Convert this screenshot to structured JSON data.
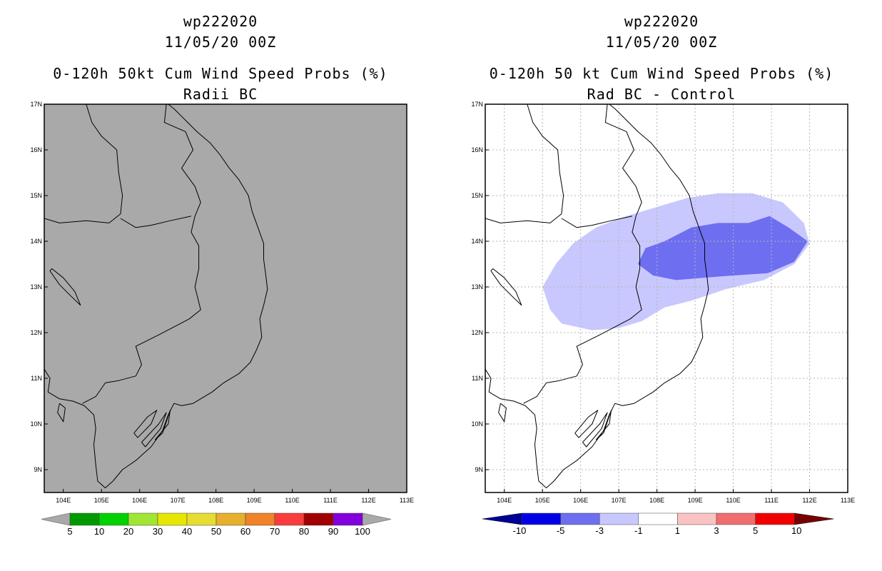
{
  "chart_data": [
    {
      "type": "heatmap",
      "panel": "left",
      "title_lines": [
        "wp222020",
        "11/05/20 00Z",
        "0-120h 50kt Cum Wind Speed Probs (%)",
        "Radii BC"
      ],
      "xlim": [
        103.5,
        113
      ],
      "ylim": [
        8.5,
        17
      ],
      "x_ticks": [
        "104E",
        "105E",
        "106E",
        "107E",
        "108E",
        "109E",
        "110E",
        "111E",
        "112E",
        "113E"
      ],
      "y_ticks": [
        "9N",
        "10N",
        "11N",
        "12N",
        "13N",
        "14N",
        "15N",
        "16N",
        "17N"
      ],
      "field": "all below 5% (undefined)",
      "fill_color": "#a9a9a9",
      "gridlines": false,
      "colorbar": {
        "labels": [
          "5",
          "10",
          "20",
          "30",
          "40",
          "50",
          "60",
          "70",
          "80",
          "90",
          "100"
        ],
        "colors": [
          "#009a00",
          "#00d200",
          "#a0e632",
          "#e6e600",
          "#e6dc32",
          "#e6af2d",
          "#f08228",
          "#fa3c3c",
          "#a00000",
          "#8200dc"
        ],
        "end_color": "#a9a9a9"
      }
    },
    {
      "type": "heatmap",
      "panel": "right",
      "title_lines": [
        "wp222020",
        "11/05/20 00Z",
        "0-120h 50 kt Cum Wind Speed Probs (%)",
        "Rad BC - Control"
      ],
      "xlim": [
        103.5,
        113
      ],
      "ylim": [
        8.5,
        17
      ],
      "x_ticks": [
        "104E",
        "105E",
        "106E",
        "107E",
        "108E",
        "109E",
        "110E",
        "111E",
        "112E",
        "113E"
      ],
      "y_ticks": [
        "9N",
        "10N",
        "11N",
        "12N",
        "13N",
        "14N",
        "15N",
        "16N",
        "17N"
      ],
      "gridlines": true,
      "contours": [
        {
          "range": "-3 to -1",
          "color": "#c8c8ff"
        },
        {
          "range": "-5 to -3",
          "color": "#6e6ef0"
        }
      ],
      "colorbar": {
        "labels": [
          "-10",
          "-5",
          "-3",
          "-1",
          "1",
          "3",
          "5",
          "10"
        ],
        "colors": [
          "#0000e6",
          "#6e6ef0",
          "#c8c8ff",
          "#ffffff",
          "#fac3c3",
          "#f06e6e",
          "#f00000"
        ],
        "low_end_color": "#000096",
        "high_end_color": "#780000"
      }
    }
  ]
}
